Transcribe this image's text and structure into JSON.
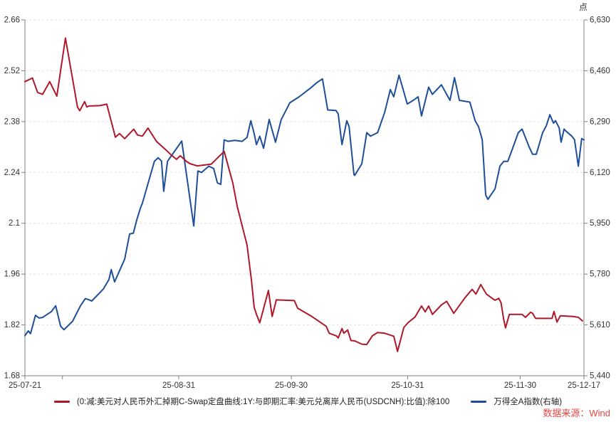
{
  "source_note": "数据来源：Wind",
  "colors": {
    "red_series": "#b0182a",
    "blue_series": "#1f4e99",
    "grid": "#e2e2e2",
    "axis": "#808080",
    "label": "#333333",
    "source_note": "#e64540"
  },
  "chart_data": {
    "type": "line",
    "title": "",
    "grid": "horizontal dashed",
    "legend_position": "bottom-center",
    "x_axis": {
      "start_date": "25-07-21",
      "end_date": "25-12-17",
      "tick_labels": [
        "25-07-21",
        "25-08-31",
        "25-09-30",
        "25-10-31",
        "25-11-30",
        "25-12-17"
      ],
      "tick_days": [
        0,
        41,
        71,
        102,
        132,
        149
      ],
      "minor_tick_days": [
        10
      ],
      "total_days": 149
    },
    "left_axis": {
      "min": 1.68,
      "max": 2.66,
      "tick_labels": [
        "2.66",
        "2.52",
        "2.38",
        "2.24",
        "2.1",
        "1.96",
        "1.82",
        "1.68"
      ]
    },
    "right_axis": {
      "min": 5440,
      "max": 6630,
      "unit": "点",
      "tick_labels": [
        "6,630",
        "6,460",
        "6,290",
        "6,120",
        "5,950",
        "5,780",
        "5,610",
        "5,440"
      ]
    },
    "series": [
      {
        "name": "(0:减:美元对人民币外汇掉期C-Swap定盘曲线:1Y:与即期汇率:美元兑离岸人民币(USDCNH):比值):除100",
        "axis": "left",
        "color": "#b0182a",
        "points": [
          [
            0,
            2.49
          ],
          [
            2,
            2.5
          ],
          [
            3.4,
            2.46
          ],
          [
            4.7,
            2.455
          ],
          [
            6.6,
            2.49
          ],
          [
            8.5,
            2.45
          ],
          [
            10.8,
            2.61
          ],
          [
            14,
            2.42
          ],
          [
            14.6,
            2.41
          ],
          [
            15.9,
            2.435
          ],
          [
            16.5,
            2.42
          ],
          [
            17.1,
            2.423
          ],
          [
            20,
            2.424
          ],
          [
            21.8,
            2.428
          ],
          [
            24.1,
            2.337
          ],
          [
            25.2,
            2.347
          ],
          [
            26.6,
            2.333
          ],
          [
            29,
            2.359
          ],
          [
            30,
            2.343
          ],
          [
            31.3,
            2.34
          ],
          [
            32.8,
            2.362
          ],
          [
            35.1,
            2.325
          ],
          [
            37.6,
            2.302
          ],
          [
            38.9,
            2.289
          ],
          [
            40.4,
            2.276
          ],
          [
            41.4,
            2.286
          ],
          [
            43.1,
            2.27
          ],
          [
            44,
            2.264
          ],
          [
            45.9,
            2.258
          ],
          [
            49.7,
            2.263
          ],
          [
            53.1,
            2.298
          ],
          [
            55.4,
            2.211
          ],
          [
            56.6,
            2.146
          ],
          [
            57.9,
            2.093
          ],
          [
            59.2,
            2.04
          ],
          [
            60.4,
            1.941
          ],
          [
            61.1,
            1.869
          ],
          [
            61.7,
            1.849
          ],
          [
            62.6,
            1.826
          ],
          [
            64.9,
            1.915
          ],
          [
            65.9,
            1.843
          ],
          [
            67,
            1.889
          ],
          [
            71.8,
            1.887
          ],
          [
            72.7,
            1.866
          ],
          [
            76.5,
            1.843
          ],
          [
            80.3,
            1.816
          ],
          [
            81.1,
            1.797
          ],
          [
            83,
            1.79
          ],
          [
            83.5,
            1.784
          ],
          [
            84.5,
            1.81
          ],
          [
            85,
            1.797
          ],
          [
            86,
            1.806
          ],
          [
            86.9,
            1.777
          ],
          [
            87.9,
            1.776
          ],
          [
            89.8,
            1.767
          ],
          [
            91.1,
            1.766
          ],
          [
            92.6,
            1.79
          ],
          [
            94,
            1.799
          ],
          [
            95.9,
            1.797
          ],
          [
            98.3,
            1.789
          ],
          [
            99.3,
            1.747
          ],
          [
            101,
            1.813
          ],
          [
            102.1,
            1.826
          ],
          [
            104,
            1.842
          ],
          [
            105.7,
            1.872
          ],
          [
            106.7,
            1.856
          ],
          [
            107.6,
            1.872
          ],
          [
            108.6,
            1.849
          ],
          [
            111,
            1.875
          ],
          [
            112.4,
            1.885
          ],
          [
            114.3,
            1.852
          ],
          [
            117.3,
            1.895
          ],
          [
            119.2,
            1.918
          ],
          [
            120.2,
            1.905
          ],
          [
            121.5,
            1.931
          ],
          [
            123,
            1.905
          ],
          [
            124.3,
            1.895
          ],
          [
            125.3,
            1.888
          ],
          [
            126.3,
            1.893
          ],
          [
            126.9,
            1.881
          ],
          [
            127.6,
            1.835
          ],
          [
            128.1,
            1.812
          ],
          [
            129.1,
            1.849
          ],
          [
            132.5,
            1.849
          ],
          [
            133.4,
            1.841
          ],
          [
            134.8,
            1.855
          ],
          [
            135.3,
            1.852
          ],
          [
            136.1,
            1.838
          ],
          [
            140.5,
            1.838
          ],
          [
            141,
            1.857
          ],
          [
            141.8,
            1.828
          ],
          [
            142.7,
            1.845
          ],
          [
            146.2,
            1.843
          ],
          [
            147.5,
            1.841
          ],
          [
            148.6,
            1.831
          ]
        ]
      },
      {
        "name": "万得全A指数(右轴)",
        "axis": "right",
        "color": "#1f4e99",
        "points": [
          [
            0,
            5574
          ],
          [
            0.9,
            5590
          ],
          [
            1.5,
            5581
          ],
          [
            2.8,
            5642
          ],
          [
            3.8,
            5633
          ],
          [
            4.7,
            5635
          ],
          [
            7,
            5654
          ],
          [
            8.2,
            5674
          ],
          [
            9.5,
            5606
          ],
          [
            10.4,
            5594
          ],
          [
            12.7,
            5622
          ],
          [
            14.8,
            5674
          ],
          [
            16.1,
            5698
          ],
          [
            17.1,
            5694
          ],
          [
            17.8,
            5690
          ],
          [
            20.9,
            5730
          ],
          [
            22.4,
            5762
          ],
          [
            23,
            5795
          ],
          [
            23.9,
            5754
          ],
          [
            26.6,
            5830
          ],
          [
            27.9,
            5914
          ],
          [
            28.9,
            5917
          ],
          [
            29.8,
            5961
          ],
          [
            30.9,
            6005
          ],
          [
            31.3,
            6017
          ],
          [
            34.5,
            6157
          ],
          [
            35.5,
            6169
          ],
          [
            36.4,
            6158
          ],
          [
            37,
            6057
          ],
          [
            38,
            6157
          ],
          [
            41.8,
            6225
          ],
          [
            45,
            5941
          ],
          [
            46.1,
            6125
          ],
          [
            47.1,
            6120
          ],
          [
            49,
            6141
          ],
          [
            50.3,
            6133
          ],
          [
            51.3,
            6085
          ],
          [
            52.2,
            6080
          ],
          [
            53.1,
            6229
          ],
          [
            54.1,
            6224
          ],
          [
            56,
            6227
          ],
          [
            57.9,
            6224
          ],
          [
            59.2,
            6237
          ],
          [
            60.2,
            6293
          ],
          [
            61.1,
            6250
          ],
          [
            61.7,
            6213
          ],
          [
            62.6,
            6241
          ],
          [
            63.6,
            6201
          ],
          [
            65.1,
            6297
          ],
          [
            66.8,
            6221
          ],
          [
            68.3,
            6296
          ],
          [
            70.6,
            6353
          ],
          [
            73.1,
            6373
          ],
          [
            75.9,
            6400
          ],
          [
            77.8,
            6420
          ],
          [
            79.3,
            6433
          ],
          [
            80.7,
            6329
          ],
          [
            82.9,
            6327
          ],
          [
            83.5,
            6316
          ],
          [
            84.5,
            6213
          ],
          [
            85.8,
            6293
          ],
          [
            86.4,
            6273
          ],
          [
            87.7,
            6113
          ],
          [
            87.9,
            6110
          ],
          [
            89.8,
            6149
          ],
          [
            91.1,
            6253
          ],
          [
            92.1,
            6241
          ],
          [
            94,
            6253
          ],
          [
            95.9,
            6321
          ],
          [
            97.4,
            6397
          ],
          [
            98.3,
            6373
          ],
          [
            99.7,
            6445
          ],
          [
            101,
            6389
          ],
          [
            101.9,
            6349
          ],
          [
            103.5,
            6361
          ],
          [
            104.8,
            6373
          ],
          [
            105.7,
            6309
          ],
          [
            107.6,
            6405
          ],
          [
            108.6,
            6381
          ],
          [
            111,
            6413
          ],
          [
            113.3,
            6361
          ],
          [
            114.5,
            6437
          ],
          [
            115.8,
            6361
          ],
          [
            118.6,
            6355
          ],
          [
            120,
            6293
          ],
          [
            120.9,
            6273
          ],
          [
            121.9,
            6229
          ],
          [
            122.8,
            6045
          ],
          [
            123.4,
            6030
          ],
          [
            125.3,
            6065
          ],
          [
            126.6,
            6141
          ],
          [
            127.6,
            6157
          ],
          [
            128.7,
            6157
          ],
          [
            130,
            6201
          ],
          [
            131.5,
            6253
          ],
          [
            132.5,
            6265
          ],
          [
            134.4,
            6205
          ],
          [
            135.3,
            6181
          ],
          [
            136.3,
            6181
          ],
          [
            138,
            6253
          ],
          [
            139,
            6277
          ],
          [
            139.9,
            6313
          ],
          [
            140.9,
            6285
          ],
          [
            141.4,
            6293
          ],
          [
            142.4,
            6269
          ],
          [
            142.9,
            6221
          ],
          [
            143.7,
            6265
          ],
          [
            144.3,
            6257
          ],
          [
            145.8,
            6241
          ],
          [
            146.5,
            6229
          ],
          [
            147.5,
            6141
          ],
          [
            148.4,
            6233
          ],
          [
            149,
            6229
          ]
        ]
      }
    ]
  }
}
